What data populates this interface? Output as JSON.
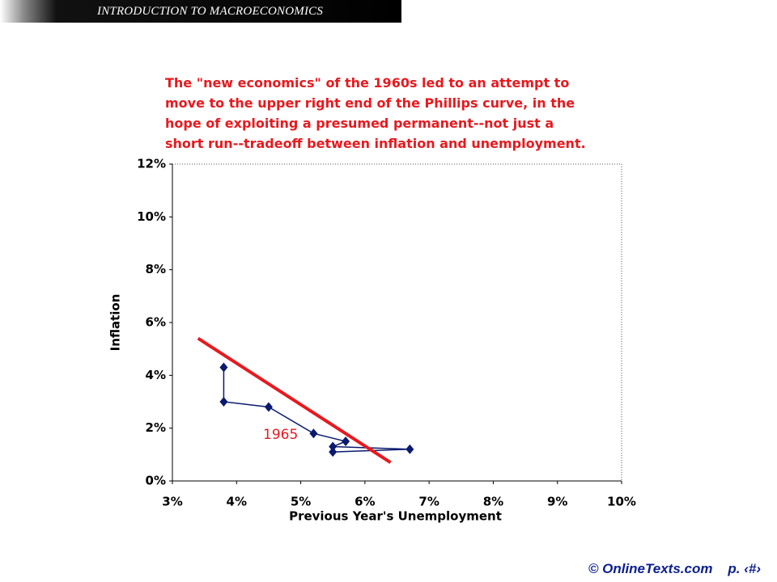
{
  "header": {
    "title": "INTRODUCTION TO MACROECONOMICS"
  },
  "footer": {
    "copyright": "© OnlineTexts.com",
    "page": "p. ‹#›"
  },
  "chart_data": {
    "type": "line",
    "annotation_lines": [
      "The \"new economics\" of the 1960s led to an attempt to",
      "move to the upper right end of the Phillips curve, in the",
      "hope of exploiting a presumed permanent--not just a",
      "short run--tradeoff between inflation and unemployment."
    ],
    "xlabel": "Previous Year's Unemployment",
    "ylabel": "Inflation",
    "xlim": [
      3,
      10
    ],
    "ylim": [
      0,
      12
    ],
    "xticks": [
      {
        "value": 3,
        "label": "3%"
      },
      {
        "value": 4,
        "label": "4%"
      },
      {
        "value": 5,
        "label": "5%"
      },
      {
        "value": 6,
        "label": "6%"
      },
      {
        "value": 7,
        "label": "7%"
      },
      {
        "value": 8,
        "label": "8%"
      },
      {
        "value": 9,
        "label": "9%"
      },
      {
        "value": 10,
        "label": "10%"
      }
    ],
    "yticks": [
      {
        "value": 0,
        "label": "0%"
      },
      {
        "value": 2,
        "label": "2%"
      },
      {
        "value": 4,
        "label": "4%"
      },
      {
        "value": 6,
        "label": "6%"
      },
      {
        "value": 8,
        "label": "8%"
      },
      {
        "value": 10,
        "label": "10%"
      },
      {
        "value": 12,
        "label": "12%"
      }
    ],
    "series": [
      {
        "color": "#0a1a6e",
        "marker": "diamond",
        "x": [
          5.5,
          6.7,
          5.5,
          5.7,
          5.2,
          4.5,
          3.8,
          3.8
        ],
        "values": [
          1.1,
          1.2,
          1.3,
          1.5,
          1.8,
          2.8,
          3.0,
          4.3
        ]
      },
      {
        "color": "#e8191e",
        "marker": "none",
        "x": [
          3.4,
          6.4
        ],
        "values": [
          5.4,
          0.7
        ]
      }
    ],
    "point_label": {
      "text": "1965",
      "color": "#e8191e"
    }
  }
}
